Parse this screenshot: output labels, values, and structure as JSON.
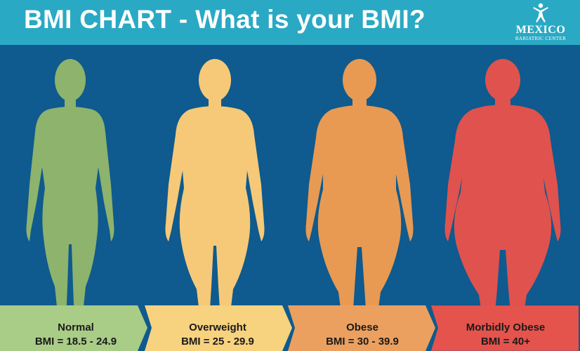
{
  "header": {
    "title": "BMI CHART - What is your BMI?",
    "logo_name": "MEXICO",
    "logo_sub": "BARIATRIC CENTER"
  },
  "categories": [
    {
      "name": "Normal",
      "range": "BMI = 18.5 - 24.9",
      "color": "#8db36c",
      "tab_color": "#a9cc87"
    },
    {
      "name": "Overweight",
      "range": "BMI = 25 - 29.9",
      "color": "#f5c978",
      "tab_color": "#f7d27f"
    },
    {
      "name": "Obese",
      "range": "BMI = 30 - 39.9",
      "color": "#e89a52",
      "tab_color": "#eba060"
    },
    {
      "name": "Morbidly Obese",
      "range": "BMI = 40+",
      "color": "#e0524d",
      "tab_color": "#e5534d"
    }
  ],
  "colors": {
    "header_bg": "#2aa9c4",
    "main_bg": "#0f5a8e"
  }
}
